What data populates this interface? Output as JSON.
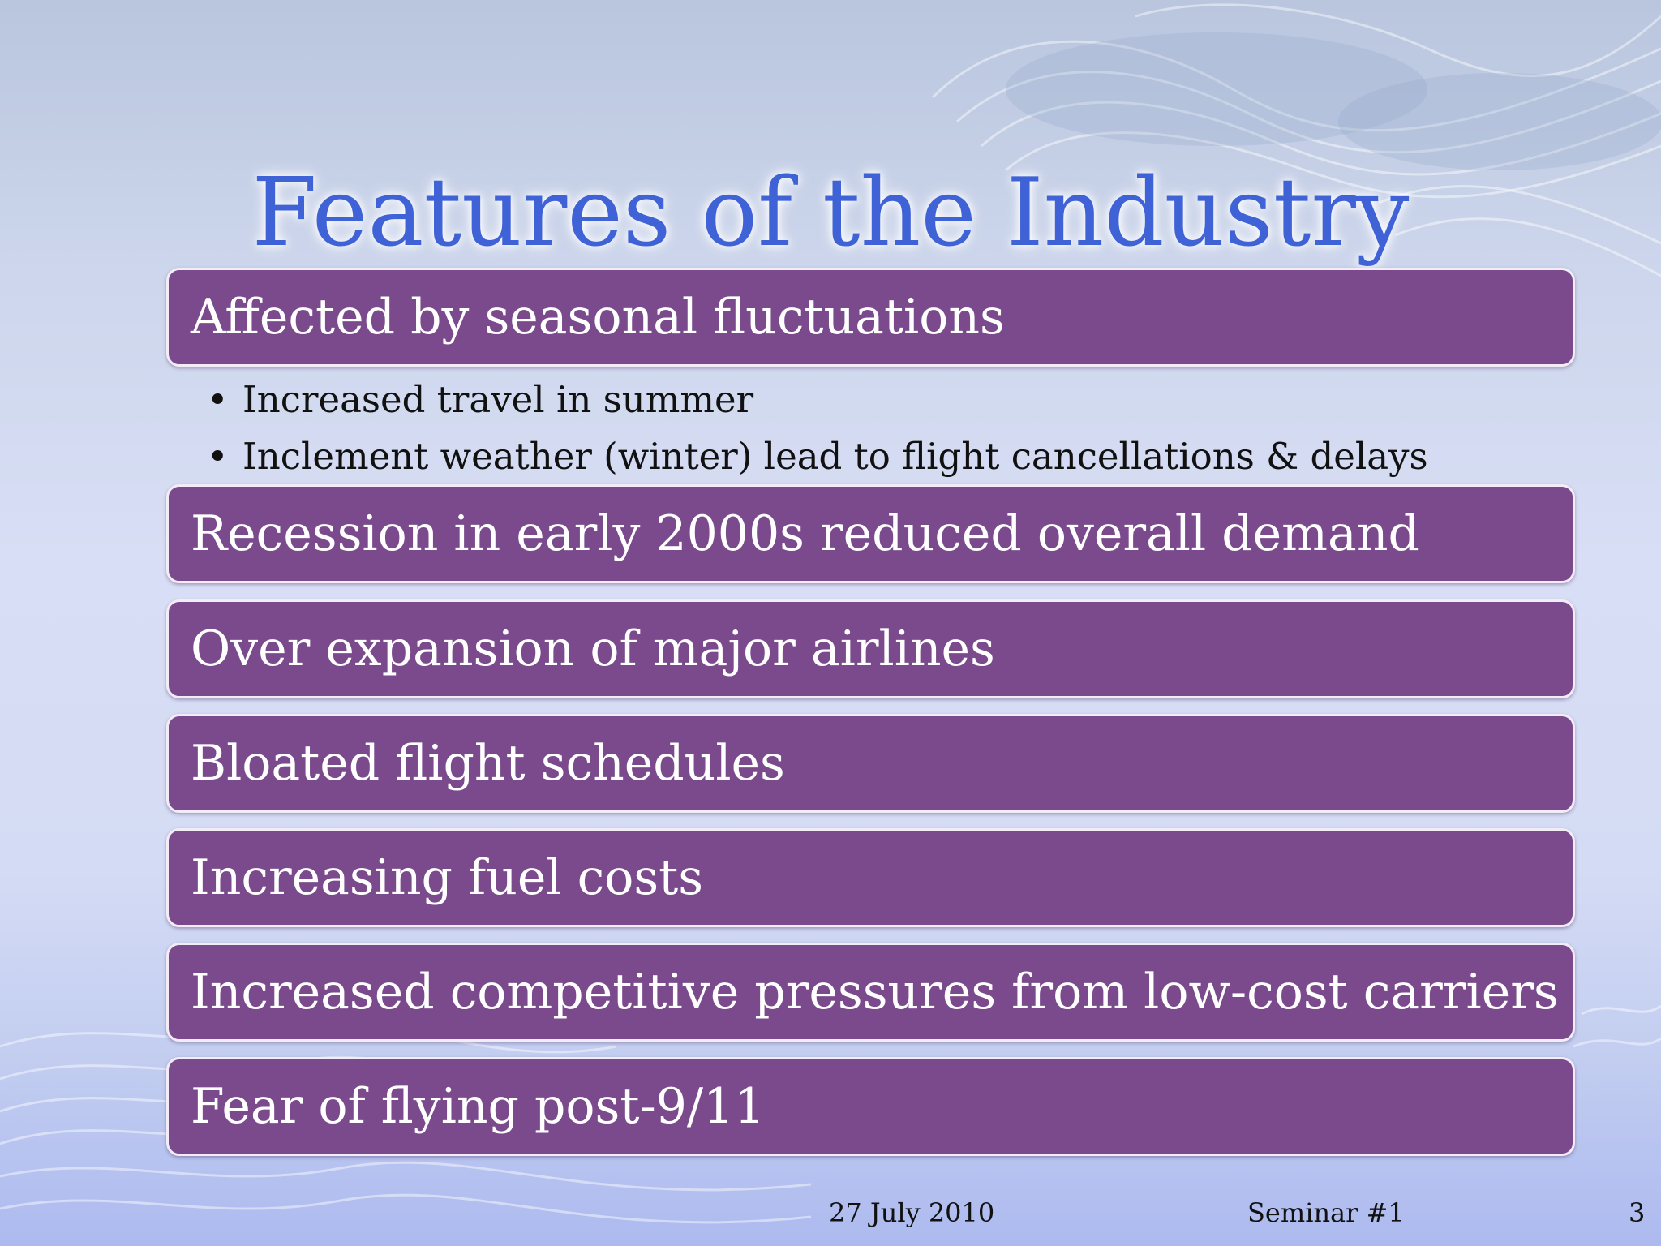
{
  "slide": {
    "title": "Features of the Industry",
    "sections": [
      {
        "heading": "Affected by seasonal fluctuations"
      },
      {
        "heading": "Recession in early 2000s reduced overall demand"
      },
      {
        "heading": "Over expansion of major airlines"
      },
      {
        "heading": "Bloated flight schedules"
      },
      {
        "heading": "Increasing fuel costs"
      },
      {
        "heading": "Increased competitive pressures from low-cost carriers"
      },
      {
        "heading": "Fear of flying post-9/11"
      }
    ],
    "bullets": [
      "Increased travel in summer",
      "Inclement weather (winter) lead to flight cancellations & delays"
    ],
    "bullet_glyph": "•"
  },
  "footer": {
    "date": "27 July 2010",
    "label": "Seminar #1",
    "page_number": "3"
  },
  "colors": {
    "title": "#3f62d6",
    "bar_fill": "#7a4a8c",
    "bar_border": "#f2ecf6",
    "bar_text": "#ffffff",
    "background": "#d4dbf4"
  }
}
